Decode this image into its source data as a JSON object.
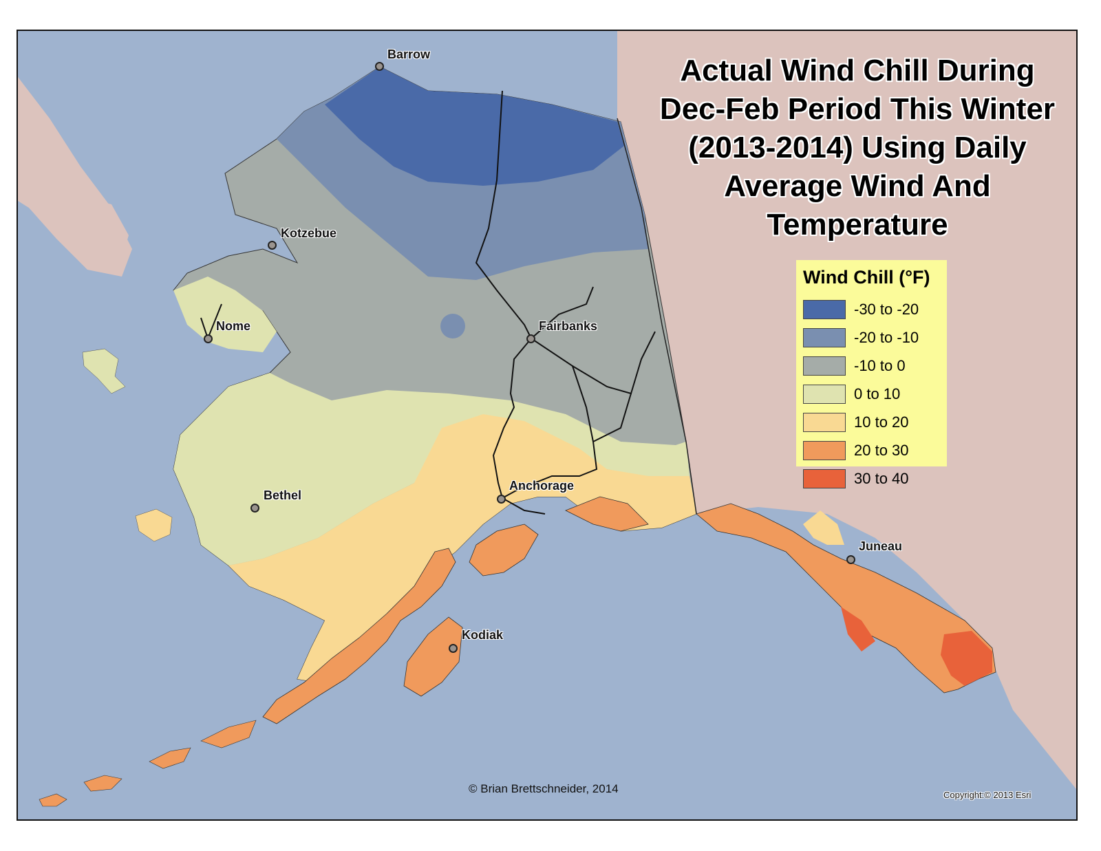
{
  "title_lines": [
    "Actual Wind Chill During",
    "Dec-Feb Period This Winter",
    "(2013-2014) Using Daily",
    "Average Wind And",
    "Temperature"
  ],
  "legend": {
    "title": "Wind Chill (°F)",
    "items": [
      {
        "label": "-30 to -20",
        "color": "#4a6aa8"
      },
      {
        "label": "-20 to -10",
        "color": "#7a8fb0"
      },
      {
        "label": "-10 to 0",
        "color": "#a5aca8"
      },
      {
        "label": "0 to 10",
        "color": "#dfe3b0"
      },
      {
        "label": "10 to 20",
        "color": "#f9d993"
      },
      {
        "label": "20 to 30",
        "color": "#f09a5c"
      },
      {
        "label": "30 to 40",
        "color": "#e8623a"
      }
    ]
  },
  "cities": {
    "barrow": "Barrow",
    "kotzebue": "Kotzebue",
    "nome": "Nome",
    "fairbanks": "Fairbanks",
    "bethel": "Bethel",
    "anchorage": "Anchorage",
    "juneau": "Juneau",
    "kodiak": "Kodiak"
  },
  "credit": "© Brian Brettschneider, 2014",
  "copyright": "Copyright:© 2013 Esri",
  "colors": {
    "ocean": "#9fb3cf",
    "canada_land": "#dcc3bd",
    "border": "#111111",
    "legend_bg": "#fbfb9a"
  }
}
